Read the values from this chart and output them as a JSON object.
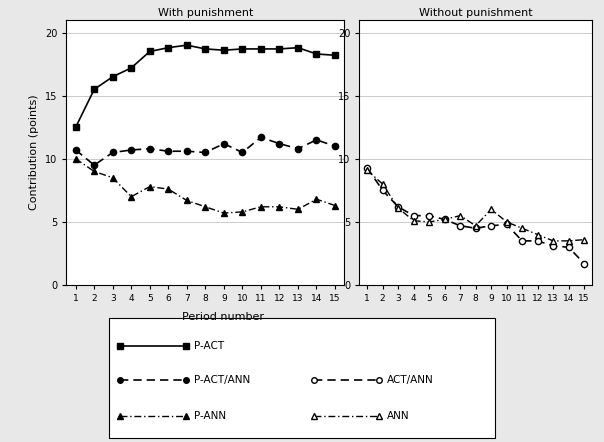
{
  "periods": [
    1,
    2,
    3,
    4,
    5,
    6,
    7,
    8,
    9,
    10,
    11,
    12,
    13,
    14,
    15
  ],
  "with_punishment": {
    "P-ACT": [
      12.5,
      15.5,
      16.5,
      17.2,
      18.5,
      18.8,
      19.0,
      18.7,
      18.6,
      18.7,
      18.7,
      18.7,
      18.8,
      18.3,
      18.2
    ],
    "P-ACT/ANN": [
      10.7,
      9.5,
      10.5,
      10.7,
      10.8,
      10.6,
      10.6,
      10.5,
      11.2,
      10.5,
      11.7,
      11.2,
      10.8,
      11.5,
      11.0
    ],
    "P-ANN": [
      10.0,
      9.0,
      8.5,
      7.0,
      7.8,
      7.6,
      6.7,
      6.2,
      5.7,
      5.8,
      6.2,
      6.2,
      6.0,
      6.8,
      6.3
    ]
  },
  "without_punishment": {
    "ACT/ANN": [
      9.3,
      7.5,
      6.2,
      5.5,
      5.5,
      5.2,
      4.7,
      4.5,
      4.7,
      4.8,
      3.5,
      3.5,
      3.1,
      3.0,
      1.7
    ],
    "ANN": [
      9.1,
      8.0,
      6.1,
      5.1,
      5.0,
      5.2,
      5.5,
      4.7,
      6.0,
      5.0,
      4.5,
      4.0,
      3.5,
      3.5,
      3.6
    ]
  },
  "ylim": [
    0,
    21
  ],
  "yticks": [
    0,
    5,
    10,
    15,
    20
  ],
  "xlabel": "Period number",
  "ylabel": "Contribution (points)",
  "title_left": "With punishment",
  "title_right": "Without punishment",
  "bg_color": "#e8e8e8",
  "panel_bg": "#ffffff"
}
